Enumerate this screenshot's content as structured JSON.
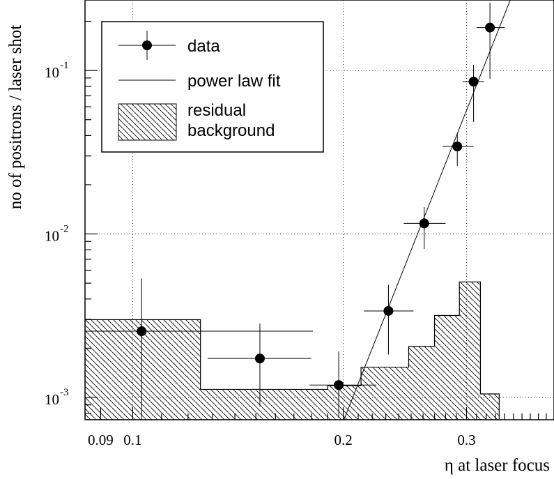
{
  "chart_data": {
    "type": "scatter",
    "xlabel": "η at laser focus",
    "ylabel": "no of positrons / laser shot",
    "x_scale": "log",
    "y_scale": "log",
    "xlim": [
      0.0855,
      0.4
    ],
    "ylim": [
      0.00073,
      0.27
    ],
    "grid": true,
    "x_ticks": [
      {
        "value": 0.09,
        "label": "0.09"
      },
      {
        "value": 0.1,
        "label": "0.1"
      },
      {
        "value": 0.2,
        "label": "0.2"
      },
      {
        "value": 0.3,
        "label": "0.3"
      }
    ],
    "y_ticks": [
      {
        "value": 0.001,
        "label": "10",
        "exponent": "-3"
      },
      {
        "value": 0.01,
        "label": "10",
        "exponent": "-2"
      },
      {
        "value": 0.1,
        "label": "10",
        "exponent": "-1"
      }
    ],
    "x_gridlines": [
      0.1,
      0.2,
      0.3
    ],
    "y_gridlines": [
      0.001,
      0.01,
      0.1
    ],
    "legend": {
      "placement": "top-left",
      "entries": [
        {
          "kind": "data",
          "label": "data"
        },
        {
          "kind": "fit",
          "label": "power law fit"
        },
        {
          "kind": "background",
          "label_lines": [
            "residual",
            "background"
          ]
        }
      ]
    },
    "series": [
      {
        "name": "data",
        "kind": "points_with_errors",
        "points": [
          {
            "x": 0.103,
            "y": 0.00254,
            "xerr": [
              0.0175,
              0.078
            ],
            "yerr": [
              0.00254,
              0.0028
            ]
          },
          {
            "x": 0.152,
            "y": 0.00173,
            "xerr": [
              0.024,
              0.028
            ],
            "yerr": [
              0.00085,
              0.0011
            ]
          },
          {
            "x": 0.197,
            "y": 0.00119,
            "xerr": [
              0.018,
              0.026
            ],
            "yerr": [
              0.00044,
              0.00072
            ]
          },
          {
            "x": 0.232,
            "y": 0.00338,
            "xerr": [
              0.018,
              0.02
            ],
            "yerr": [
              0.00155,
              0.0015
            ]
          },
          {
            "x": 0.261,
            "y": 0.0116,
            "xerr": [
              0.017,
              0.019
            ],
            "yerr": [
              0.0035,
              0.003
            ]
          },
          {
            "x": 0.291,
            "y": 0.0343,
            "xerr": [
              0.014,
              0.016
            ],
            "yerr": [
              0.0082,
              0.0071
            ]
          },
          {
            "x": 0.307,
            "y": 0.0855,
            "xerr": [
              0.011,
              0.011
            ],
            "yerr": [
              0.037,
              0.023
            ]
          },
          {
            "x": 0.324,
            "y": 0.183,
            "xerr": [
              0.014,
              0.016
            ],
            "yerr": [
              0.094,
              0.077
            ]
          }
        ]
      },
      {
        "name": "power law fit",
        "kind": "line",
        "points": [
          {
            "x": 0.2004,
            "y": 0.00073
          },
          {
            "x": 0.3464,
            "y": 0.27
          }
        ]
      },
      {
        "name": "residual background",
        "kind": "step_hatched",
        "bins": [
          {
            "x0": 0.0855,
            "x1": 0.125,
            "y": 0.00299
          },
          {
            "x0": 0.125,
            "x1": 0.19,
            "y": 0.00112
          },
          {
            "x0": 0.19,
            "x1": 0.212,
            "y": 0.00118
          },
          {
            "x0": 0.212,
            "x1": 0.248,
            "y": 0.00153
          },
          {
            "x0": 0.248,
            "x1": 0.27,
            "y": 0.00205
          },
          {
            "x0": 0.27,
            "x1": 0.293,
            "y": 0.00317
          },
          {
            "x0": 0.293,
            "x1": 0.314,
            "y": 0.00509
          },
          {
            "x0": 0.314,
            "x1": 0.334,
            "y": 0.00105
          }
        ]
      }
    ]
  }
}
